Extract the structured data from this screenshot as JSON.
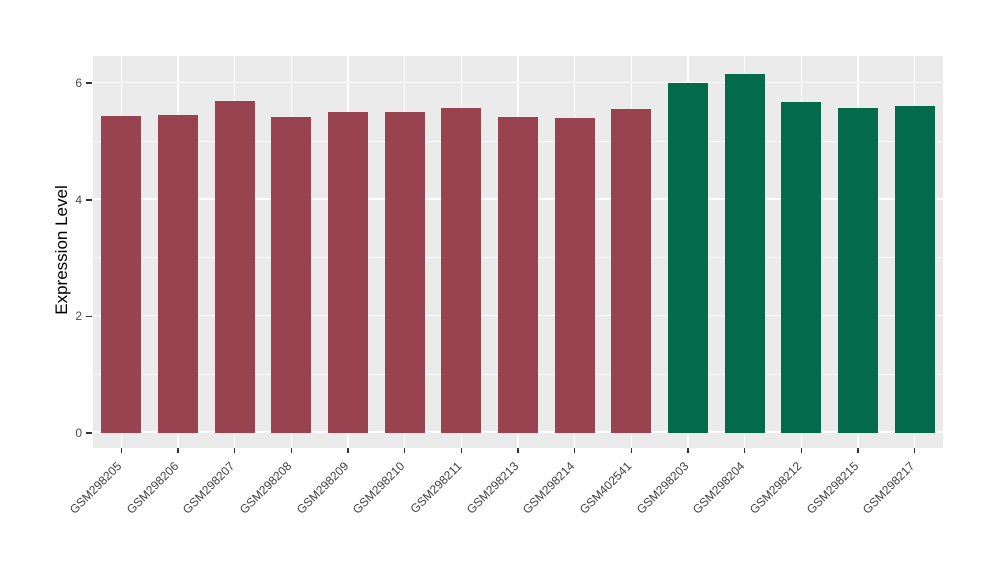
{
  "figure": {
    "background": "#FFFFFF",
    "panel_background": "#EBEBEB",
    "grid_color": "#FFFFFF",
    "tick_mark_color": "#333333",
    "tick_label_color": "#4D4D4D",
    "axis_title_color": "#000000"
  },
  "chart_data": {
    "type": "bar",
    "title": "",
    "xlabel": "",
    "ylabel": "Expression Level",
    "categories": [
      "GSM298205",
      "GSM298206",
      "GSM298207",
      "GSM298208",
      "GSM298209",
      "GSM298210",
      "GSM298211",
      "GSM298213",
      "GSM298214",
      "GSM402541",
      "GSM298203",
      "GSM298204",
      "GSM298212",
      "GSM298215",
      "GSM298217"
    ],
    "values": [
      5.43,
      5.46,
      5.7,
      5.42,
      5.51,
      5.5,
      5.58,
      5.42,
      5.4,
      5.55,
      6.01,
      6.15,
      5.68,
      5.58,
      5.61
    ],
    "groups": [
      "group1",
      "group1",
      "group1",
      "group1",
      "group1",
      "group1",
      "group1",
      "group1",
      "group1",
      "group1",
      "group2",
      "group2",
      "group2",
      "group2",
      "group2"
    ],
    "group_colors": {
      "group1": "#9A4350",
      "group2": "#046B4A"
    },
    "bar_colors": [
      "#9A4350",
      "#9A4350",
      "#9A4350",
      "#9A4350",
      "#9A4350",
      "#9A4350",
      "#9A4350",
      "#9A4350",
      "#9A4350",
      "#9A4350",
      "#046B4A",
      "#046B4A",
      "#046B4A",
      "#046B4A",
      "#046B4A"
    ],
    "yticks": [
      0,
      2,
      4,
      6
    ],
    "y_minor_gridlines": [
      1,
      3,
      5
    ],
    "ylim": [
      -0.26,
      6.47
    ],
    "grid": true,
    "legend": "none",
    "x_label_rotation_deg": 45
  }
}
